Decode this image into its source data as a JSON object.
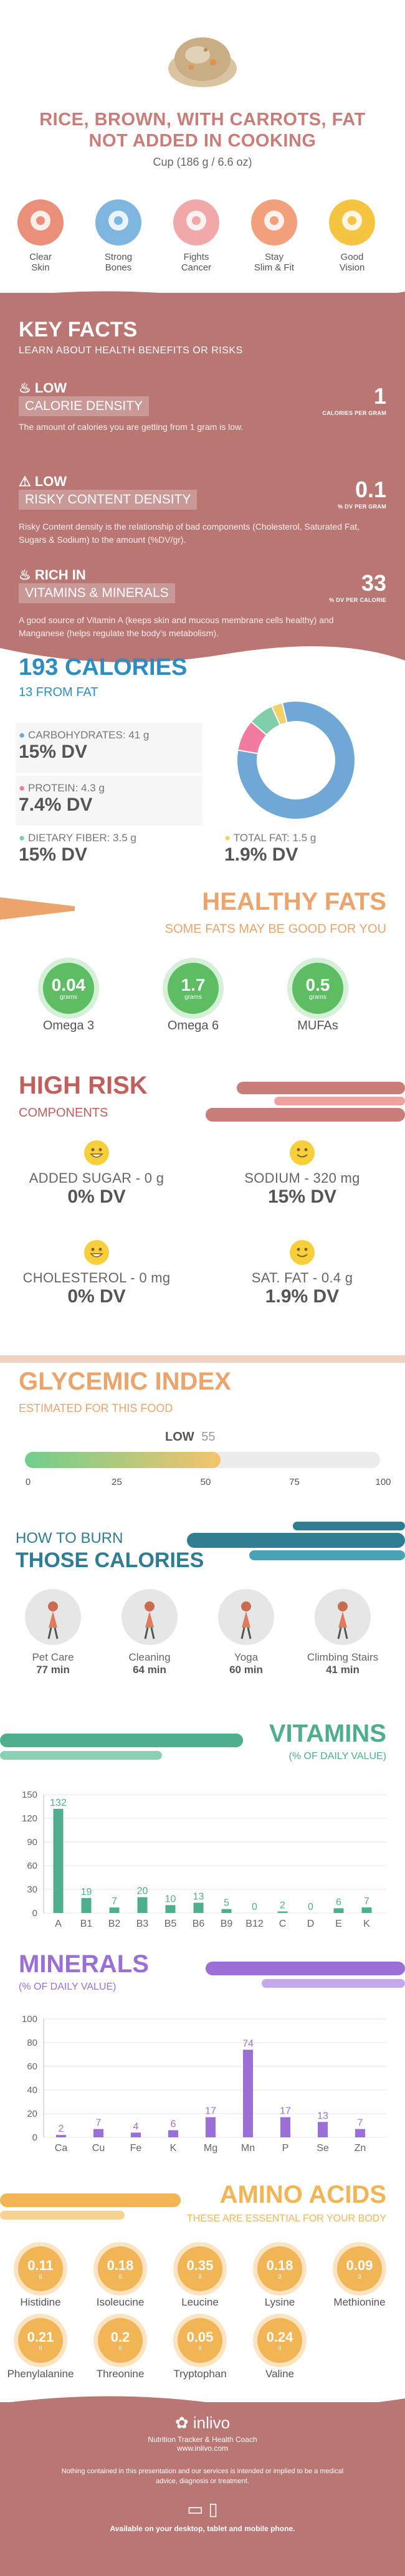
{
  "header": {
    "title": "RICE, BROWN, WITH CARROTS, FAT NOT ADDED IN COOKING",
    "serving": "Cup (186 g / 6.6 oz)"
  },
  "benefits": [
    {
      "label": "Clear\nSkin",
      "icon": "face-icon",
      "color": "#e98f7a"
    },
    {
      "label": "Strong\nBones",
      "icon": "bone-icon",
      "color": "#7fb6e0"
    },
    {
      "label": "Fights\nCancer",
      "icon": "ribbon-icon",
      "color": "#f0a8a8"
    },
    {
      "label": "Stay\nSlim & Fit",
      "icon": "body-icon",
      "color": "#f2a07c"
    },
    {
      "label": "Good\nVision",
      "icon": "eye-icon",
      "color": "#f5c542"
    }
  ],
  "key_facts": {
    "heading": "KEY FACTS",
    "subheading": "LEARN ABOUT HEALTH BENEFITS OR RISKS",
    "items": [
      {
        "level": "LOW",
        "name": "CALORIE DENSITY",
        "desc": "The amount of calories you are getting from 1 gram is low.",
        "value": "1",
        "unit": "CALORIES PER GRAM",
        "icon": "flame-icon"
      },
      {
        "level": "LOW",
        "name": "RISKY CONTENT DENSITY",
        "desc": "Risky Content density is the relationship of bad components (Cholesterol, Saturated Fat, Sugars & Sodium) to the amount (%DV/gr).",
        "value": "0.1",
        "unit": "% DV PER GRAM",
        "icon": "warning-icon"
      },
      {
        "level": "RICH IN",
        "name": "VITAMINS & MINERALS",
        "desc": "A good source of Vitamin A (keeps skin and mucous membrane cells healthy) and Manganese (helps regulate the body's metabolism).",
        "value": "33",
        "unit": "% DV PER CALORIE",
        "icon": "flame-icon"
      }
    ]
  },
  "calories": {
    "total": "193 CALORIES",
    "from_fat": "13 FROM FAT",
    "carbs_label": "CARBOHYDRATES: 41 g",
    "carbs_dv": "15% DV",
    "protein_label": "PROTEIN: 4.3 g",
    "protein_dv": "7.4% DV",
    "fiber_label": "DIETARY FIBER: 3.5 g",
    "fiber_dv": "15% DV",
    "fat_label": "TOTAL FAT: 1.5 g",
    "fat_dv": "1.9% DV"
  },
  "healthy_fats": {
    "heading": "HEALTHY FATS",
    "subheading": "SOME FATS MAY BE GOOD FOR YOU",
    "items": [
      {
        "value": "0.04",
        "unit": "grams",
        "label": "Omega 3"
      },
      {
        "value": "1.7",
        "unit": "grams",
        "label": "Omega 6"
      },
      {
        "value": "0.5",
        "unit": "grams",
        "label": "MUFAs"
      }
    ]
  },
  "high_risk": {
    "heading": "HIGH RISK",
    "subheading": "COMPONENTS",
    "items": [
      {
        "label": "ADDED SUGAR - 0 g",
        "dv": "0% DV",
        "face": "grin"
      },
      {
        "label": "SODIUM - 320 mg",
        "dv": "15% DV",
        "face": "smile"
      },
      {
        "label": "CHOLESTEROL - 0 mg",
        "dv": "0% DV",
        "face": "grin"
      },
      {
        "label": "SAT. FAT - 0.4 g",
        "dv": "1.9% DV",
        "face": "smile"
      }
    ]
  },
  "glycemic": {
    "heading": "GLYCEMIC INDEX",
    "subheading": "ESTIMATED FOR THIS FOOD",
    "level": "LOW",
    "value": "55",
    "ticks": [
      "0",
      "25",
      "50",
      "75",
      "100"
    ]
  },
  "burn": {
    "heading1": "HOW TO BURN",
    "heading2": "THOSE CALORIES",
    "activities": [
      {
        "name": "Pet Care",
        "time": "77 min",
        "icon": "dog-walk-icon"
      },
      {
        "name": "Cleaning",
        "time": "64 min",
        "icon": "vacuum-icon"
      },
      {
        "name": "Yoga",
        "time": "60 min",
        "icon": "yoga-icon"
      },
      {
        "name": "Climbing Stairs",
        "time": "41 min",
        "icon": "stairs-icon"
      }
    ]
  },
  "vitamins": {
    "heading": "VITAMINS",
    "subheading": "(% OF DAILY VALUE)",
    "yticks": [
      "150",
      "120",
      "90",
      "60",
      "30",
      "0"
    ]
  },
  "minerals": {
    "heading": "MINERALS",
    "subheading": "(% OF DAILY VALUE)",
    "yticks": [
      "100",
      "80",
      "60",
      "40",
      "20",
      "0"
    ]
  },
  "amino": {
    "heading": "AMINO ACIDS",
    "subheading": "THESE ARE ESSENTIAL FOR YOUR BODY",
    "items": [
      {
        "value": "0.11",
        "unit": "g",
        "label": "Histidine"
      },
      {
        "value": "0.18",
        "unit": "g",
        "label": "Isoleucine"
      },
      {
        "value": "0.35",
        "unit": "g",
        "label": "Leucine"
      },
      {
        "value": "0.18",
        "unit": "g",
        "label": "Lysine"
      },
      {
        "value": "0.09",
        "unit": "g",
        "label": "Methionine"
      },
      {
        "value": "0.21",
        "unit": "g",
        "label": "Phenylalanine"
      },
      {
        "value": "0.2",
        "unit": "g",
        "label": "Threonine"
      },
      {
        "value": "0.05",
        "unit": "g",
        "label": "Tryptophan"
      },
      {
        "value": "0.24",
        "unit": "g",
        "label": "Valine"
      }
    ]
  },
  "footer": {
    "brand": "inlivo",
    "tagline": "Nutrition Tracker & Health Coach",
    "url": "www.inlivo.com",
    "disclaimer": "Nothing contained in this presentation and our services is intended or implied to be a medical advice, diagnosis or treatment.",
    "available": "Available on your desktop, tablet and mobile phone."
  },
  "colors": {
    "rose": "#b97673",
    "blue": "#2f8cc0",
    "orange": "#eba46c",
    "red": "#c0605c",
    "green": "#4fae8e",
    "purple": "#9a6fd6",
    "amber": "#f2b556"
  },
  "chart_data": [
    {
      "type": "pie",
      "categories": [
        "Carbohydrates",
        "Protein",
        "Dietary Fiber",
        "Total Fat"
      ],
      "values": [
        41,
        4.3,
        3.5,
        1.5
      ]
    },
    {
      "type": "bar",
      "title": "VITAMINS",
      "categories": [
        "A",
        "B1",
        "B2",
        "B3",
        "B5",
        "B6",
        "B9",
        "B12",
        "C",
        "D",
        "E",
        "K"
      ],
      "values": [
        132,
        19,
        7,
        20,
        10,
        13,
        5,
        0,
        2,
        0,
        6,
        7
      ],
      "ylim": [
        0,
        150
      ]
    },
    {
      "type": "bar",
      "title": "MINERALS",
      "categories": [
        "Ca",
        "Cu",
        "Fe",
        "K",
        "Mg",
        "Mn",
        "P",
        "Se",
        "Zn"
      ],
      "values": [
        2,
        7,
        4,
        6,
        17,
        74,
        17,
        13,
        7
      ],
      "ylim": [
        0,
        100
      ]
    }
  ]
}
